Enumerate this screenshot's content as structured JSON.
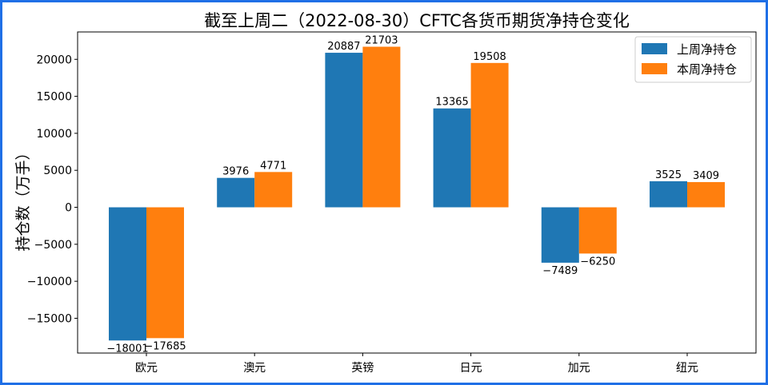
{
  "chart_data": {
    "type": "bar",
    "title": "截至上周二（2022-08-30）CFTC各货币期货净持仓变化",
    "xlabel": "",
    "ylabel": "持仓数（万手）",
    "categories": [
      "欧元",
      "澳元",
      "英镑",
      "日元",
      "加元",
      "纽元"
    ],
    "series": [
      {
        "name": "上周净持仓",
        "color": "#1f77b4",
        "values": [
          -18001,
          3976,
          20887,
          13365,
          -7489,
          3525
        ]
      },
      {
        "name": "本周净持仓",
        "color": "#ff7f0e",
        "values": [
          -17685,
          4771,
          21703,
          19508,
          -6250,
          3409
        ]
      }
    ],
    "ylim": [
      -19700,
      23700
    ],
    "yticks": [
      -15000,
      -10000,
      -5000,
      0,
      5000,
      10000,
      15000,
      20000
    ],
    "grid": false,
    "legend": "top-right",
    "data_labels": true
  },
  "frame_color": "#1f6fe6"
}
